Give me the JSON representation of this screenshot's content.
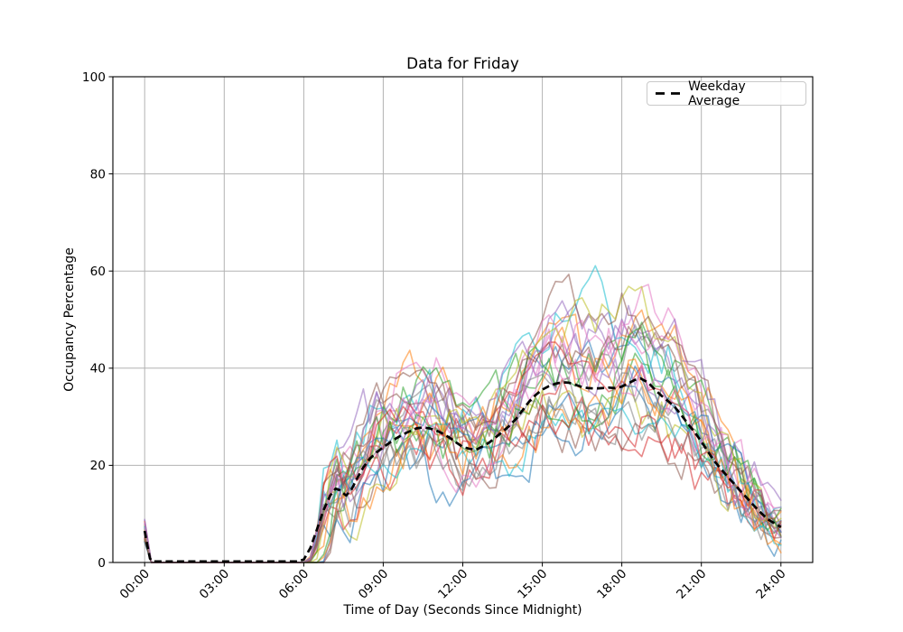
{
  "chart_data": {
    "type": "line",
    "title": "Data for Friday",
    "xlabel": "Time of Day (Seconds Since Midnight)",
    "ylabel": "Occupancy Percentage",
    "x_unit": "hours_since_midnight",
    "xlim_hours": [
      -1.2,
      25.2
    ],
    "ylim": [
      0,
      100
    ],
    "x_ticks": [
      {
        "hours": 0,
        "label": "00:00"
      },
      {
        "hours": 3,
        "label": "03:00"
      },
      {
        "hours": 6,
        "label": "06:00"
      },
      {
        "hours": 9,
        "label": "09:00"
      },
      {
        "hours": 12,
        "label": "12:00"
      },
      {
        "hours": 15,
        "label": "15:00"
      },
      {
        "hours": 18,
        "label": "18:00"
      },
      {
        "hours": 21,
        "label": "21:00"
      },
      {
        "hours": 24,
        "label": "24:00"
      }
    ],
    "y_ticks": [
      0,
      20,
      40,
      60,
      80,
      100
    ],
    "grid": {
      "show": true,
      "color": "#b2b2b2"
    },
    "legend": {
      "position": "upper-right",
      "entries": [
        {
          "label": "Weekday Average",
          "style": "dashed",
          "color": "#000000"
        }
      ]
    },
    "average_series": {
      "name": "Weekday Average",
      "color": "#000000",
      "line_style": "dashed",
      "line_width": 2.7,
      "points_hours_percent": [
        [
          0,
          6.5
        ],
        [
          0.1,
          3.5
        ],
        [
          0.2,
          0.8
        ],
        [
          0.3,
          0.2
        ],
        [
          1,
          0.2
        ],
        [
          2,
          0.2
        ],
        [
          3,
          0.2
        ],
        [
          4,
          0.2
        ],
        [
          5,
          0.2
        ],
        [
          5.75,
          0.2
        ],
        [
          6,
          0.6
        ],
        [
          6.25,
          3
        ],
        [
          6.5,
          6.8
        ],
        [
          6.75,
          10.8
        ],
        [
          7,
          13.8
        ],
        [
          7.2,
          15.2
        ],
        [
          7.35,
          14.9
        ],
        [
          7.6,
          13.8
        ],
        [
          7.8,
          15
        ],
        [
          8,
          17.2
        ],
        [
          8.25,
          19.6
        ],
        [
          8.5,
          21.4
        ],
        [
          8.75,
          22.7
        ],
        [
          9,
          23.7
        ],
        [
          9.25,
          24.7
        ],
        [
          9.5,
          25.6
        ],
        [
          9.75,
          26.4
        ],
        [
          10,
          27
        ],
        [
          10.25,
          27.6
        ],
        [
          10.5,
          27.8
        ],
        [
          10.75,
          27.6
        ],
        [
          11,
          27.2
        ],
        [
          11.25,
          26.5
        ],
        [
          11.5,
          25.7
        ],
        [
          11.75,
          24.7
        ],
        [
          12,
          23.8
        ],
        [
          12.25,
          23.4
        ],
        [
          12.5,
          23.2
        ],
        [
          12.75,
          23.9
        ],
        [
          13,
          24.7
        ],
        [
          13.25,
          25.8
        ],
        [
          13.5,
          26.9
        ],
        [
          13.75,
          28.1
        ],
        [
          14,
          29.5
        ],
        [
          14.25,
          31.3
        ],
        [
          14.5,
          33.1
        ],
        [
          14.75,
          34.5
        ],
        [
          15,
          35.6
        ],
        [
          15.25,
          36.3
        ],
        [
          15.5,
          36.8
        ],
        [
          15.75,
          37.1
        ],
        [
          16,
          37
        ],
        [
          16.25,
          36.6
        ],
        [
          16.5,
          36.1
        ],
        [
          16.75,
          35.9
        ],
        [
          17,
          35.8
        ],
        [
          17.25,
          35.9
        ],
        [
          17.5,
          36
        ],
        [
          17.75,
          35.9
        ],
        [
          18,
          36.2
        ],
        [
          18.25,
          36.9
        ],
        [
          18.5,
          37.6
        ],
        [
          18.7,
          37.9
        ],
        [
          19,
          37
        ],
        [
          19.25,
          35.6
        ],
        [
          19.5,
          34.3
        ],
        [
          19.75,
          33.2
        ],
        [
          20,
          32
        ],
        [
          20.25,
          30.3
        ],
        [
          20.5,
          28.5
        ],
        [
          20.75,
          26.8
        ],
        [
          21,
          24.9
        ],
        [
          21.25,
          22.8
        ],
        [
          21.5,
          20.8
        ],
        [
          21.75,
          19.2
        ],
        [
          22,
          17.6
        ],
        [
          22.25,
          16.1
        ],
        [
          22.5,
          14.6
        ],
        [
          22.75,
          13.1
        ],
        [
          23,
          11.6
        ],
        [
          23.25,
          10.2
        ],
        [
          23.5,
          8.9
        ],
        [
          23.75,
          8.1
        ],
        [
          24,
          7.3
        ]
      ]
    },
    "individual_series": {
      "description": "Individual Friday occupancy traces at 15-minute resolution, drawn semi-transparent; spike to ~5-8% at midnight, flat 0 from ~00:20 to ~06:00, morning hump ~28%, noon dip ~23%, afternoon plateau ~36-38%, max ~60% near 18:45, decline to ~1-10% by 24:00",
      "count": 28,
      "alpha": 0.55,
      "line_width": 1.6,
      "palette": [
        "#1f77b4",
        "#ff7f0e",
        "#2ca02c",
        "#d62728",
        "#9467bd",
        "#8c564b",
        "#e377c2",
        "#7f7f7f",
        "#bcbd22",
        "#17becf"
      ],
      "step_hours": 0.25,
      "zero_span_hours": [
        0.3,
        6.0
      ],
      "midnight_spike_percent_range": [
        4,
        8.5
      ],
      "peak_envelope_percent": [
        21,
        60
      ],
      "end_value_percent_range": [
        1,
        12
      ],
      "scale_range": [
        0.72,
        1.33
      ],
      "noise_amp_percent": [
        4.2,
        7.0
      ],
      "rise_delay_hours_max": 1.0,
      "seed": 1234567
    }
  }
}
